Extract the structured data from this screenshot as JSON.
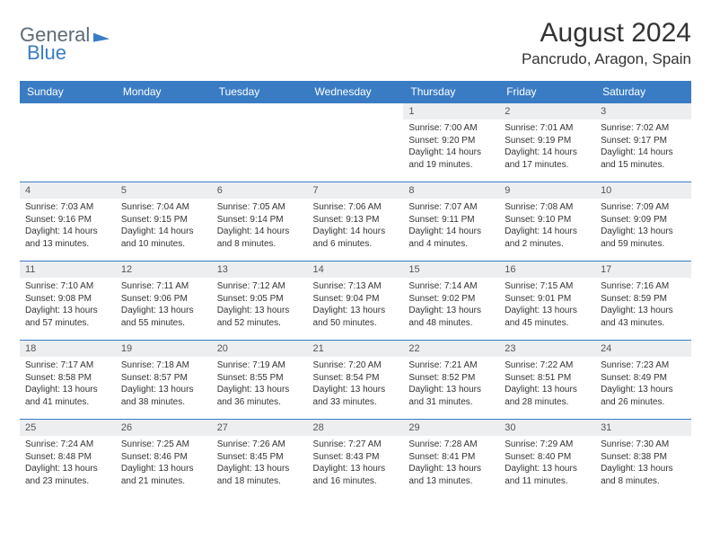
{
  "logo": {
    "text_a": "General",
    "text_b": "Blue"
  },
  "title": "August 2024",
  "location": "Pancrudo, Aragon, Spain",
  "colors": {
    "accent": "#3a7cc4",
    "header_text": "#ffffff",
    "daynum_bg": "#edeef0",
    "body_text": "#333333",
    "logo_gray": "#5d6a76"
  },
  "weekdays": [
    "Sunday",
    "Monday",
    "Tuesday",
    "Wednesday",
    "Thursday",
    "Friday",
    "Saturday"
  ],
  "weeks": [
    [
      null,
      null,
      null,
      null,
      {
        "n": "1",
        "sr": "Sunrise: 7:00 AM",
        "ss": "Sunset: 9:20 PM",
        "dl": "Daylight: 14 hours and 19 minutes."
      },
      {
        "n": "2",
        "sr": "Sunrise: 7:01 AM",
        "ss": "Sunset: 9:19 PM",
        "dl": "Daylight: 14 hours and 17 minutes."
      },
      {
        "n": "3",
        "sr": "Sunrise: 7:02 AM",
        "ss": "Sunset: 9:17 PM",
        "dl": "Daylight: 14 hours and 15 minutes."
      }
    ],
    [
      {
        "n": "4",
        "sr": "Sunrise: 7:03 AM",
        "ss": "Sunset: 9:16 PM",
        "dl": "Daylight: 14 hours and 13 minutes."
      },
      {
        "n": "5",
        "sr": "Sunrise: 7:04 AM",
        "ss": "Sunset: 9:15 PM",
        "dl": "Daylight: 14 hours and 10 minutes."
      },
      {
        "n": "6",
        "sr": "Sunrise: 7:05 AM",
        "ss": "Sunset: 9:14 PM",
        "dl": "Daylight: 14 hours and 8 minutes."
      },
      {
        "n": "7",
        "sr": "Sunrise: 7:06 AM",
        "ss": "Sunset: 9:13 PM",
        "dl": "Daylight: 14 hours and 6 minutes."
      },
      {
        "n": "8",
        "sr": "Sunrise: 7:07 AM",
        "ss": "Sunset: 9:11 PM",
        "dl": "Daylight: 14 hours and 4 minutes."
      },
      {
        "n": "9",
        "sr": "Sunrise: 7:08 AM",
        "ss": "Sunset: 9:10 PM",
        "dl": "Daylight: 14 hours and 2 minutes."
      },
      {
        "n": "10",
        "sr": "Sunrise: 7:09 AM",
        "ss": "Sunset: 9:09 PM",
        "dl": "Daylight: 13 hours and 59 minutes."
      }
    ],
    [
      {
        "n": "11",
        "sr": "Sunrise: 7:10 AM",
        "ss": "Sunset: 9:08 PM",
        "dl": "Daylight: 13 hours and 57 minutes."
      },
      {
        "n": "12",
        "sr": "Sunrise: 7:11 AM",
        "ss": "Sunset: 9:06 PM",
        "dl": "Daylight: 13 hours and 55 minutes."
      },
      {
        "n": "13",
        "sr": "Sunrise: 7:12 AM",
        "ss": "Sunset: 9:05 PM",
        "dl": "Daylight: 13 hours and 52 minutes."
      },
      {
        "n": "14",
        "sr": "Sunrise: 7:13 AM",
        "ss": "Sunset: 9:04 PM",
        "dl": "Daylight: 13 hours and 50 minutes."
      },
      {
        "n": "15",
        "sr": "Sunrise: 7:14 AM",
        "ss": "Sunset: 9:02 PM",
        "dl": "Daylight: 13 hours and 48 minutes."
      },
      {
        "n": "16",
        "sr": "Sunrise: 7:15 AM",
        "ss": "Sunset: 9:01 PM",
        "dl": "Daylight: 13 hours and 45 minutes."
      },
      {
        "n": "17",
        "sr": "Sunrise: 7:16 AM",
        "ss": "Sunset: 8:59 PM",
        "dl": "Daylight: 13 hours and 43 minutes."
      }
    ],
    [
      {
        "n": "18",
        "sr": "Sunrise: 7:17 AM",
        "ss": "Sunset: 8:58 PM",
        "dl": "Daylight: 13 hours and 41 minutes."
      },
      {
        "n": "19",
        "sr": "Sunrise: 7:18 AM",
        "ss": "Sunset: 8:57 PM",
        "dl": "Daylight: 13 hours and 38 minutes."
      },
      {
        "n": "20",
        "sr": "Sunrise: 7:19 AM",
        "ss": "Sunset: 8:55 PM",
        "dl": "Daylight: 13 hours and 36 minutes."
      },
      {
        "n": "21",
        "sr": "Sunrise: 7:20 AM",
        "ss": "Sunset: 8:54 PM",
        "dl": "Daylight: 13 hours and 33 minutes."
      },
      {
        "n": "22",
        "sr": "Sunrise: 7:21 AM",
        "ss": "Sunset: 8:52 PM",
        "dl": "Daylight: 13 hours and 31 minutes."
      },
      {
        "n": "23",
        "sr": "Sunrise: 7:22 AM",
        "ss": "Sunset: 8:51 PM",
        "dl": "Daylight: 13 hours and 28 minutes."
      },
      {
        "n": "24",
        "sr": "Sunrise: 7:23 AM",
        "ss": "Sunset: 8:49 PM",
        "dl": "Daylight: 13 hours and 26 minutes."
      }
    ],
    [
      {
        "n": "25",
        "sr": "Sunrise: 7:24 AM",
        "ss": "Sunset: 8:48 PM",
        "dl": "Daylight: 13 hours and 23 minutes."
      },
      {
        "n": "26",
        "sr": "Sunrise: 7:25 AM",
        "ss": "Sunset: 8:46 PM",
        "dl": "Daylight: 13 hours and 21 minutes."
      },
      {
        "n": "27",
        "sr": "Sunrise: 7:26 AM",
        "ss": "Sunset: 8:45 PM",
        "dl": "Daylight: 13 hours and 18 minutes."
      },
      {
        "n": "28",
        "sr": "Sunrise: 7:27 AM",
        "ss": "Sunset: 8:43 PM",
        "dl": "Daylight: 13 hours and 16 minutes."
      },
      {
        "n": "29",
        "sr": "Sunrise: 7:28 AM",
        "ss": "Sunset: 8:41 PM",
        "dl": "Daylight: 13 hours and 13 minutes."
      },
      {
        "n": "30",
        "sr": "Sunrise: 7:29 AM",
        "ss": "Sunset: 8:40 PM",
        "dl": "Daylight: 13 hours and 11 minutes."
      },
      {
        "n": "31",
        "sr": "Sunrise: 7:30 AM",
        "ss": "Sunset: 8:38 PM",
        "dl": "Daylight: 13 hours and 8 minutes."
      }
    ]
  ]
}
